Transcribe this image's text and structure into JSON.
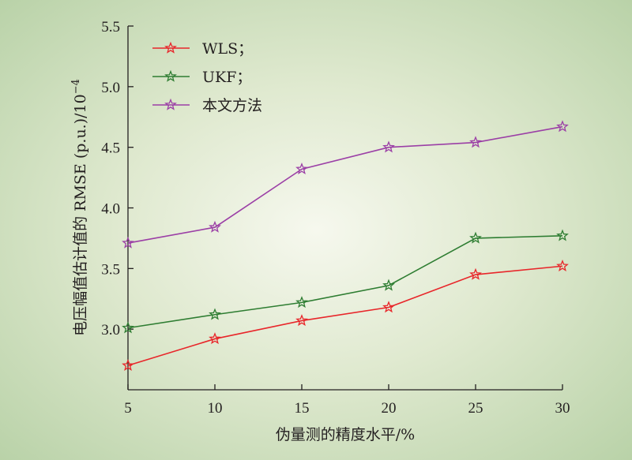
{
  "chart_data": {
    "type": "line",
    "title": "",
    "xlabel": "伪量测的精度水平/%",
    "ylabel": "电压幅值估计值的 RMSE (p.u.)/10",
    "ylabel_exponent": "−4",
    "x": [
      5,
      10,
      15,
      20,
      25,
      30
    ],
    "xlim": [
      5,
      30
    ],
    "ylim": [
      2.5,
      5.5
    ],
    "x_ticks": [
      "5",
      "10",
      "15",
      "20",
      "25",
      "30"
    ],
    "y_ticks": [
      "3.0",
      "3.5",
      "4.0",
      "4.5",
      "5.0",
      "5.5"
    ],
    "grid": false,
    "legend_position": "top-left",
    "series": [
      {
        "name": "WLS；",
        "color": "#e8262a",
        "values": [
          2.7,
          2.92,
          3.07,
          3.18,
          3.45,
          3.52
        ]
      },
      {
        "name": "UKF；",
        "color": "#2e7d32",
        "values": [
          3.01,
          3.12,
          3.22,
          3.36,
          3.75,
          3.77
        ]
      },
      {
        "name": "本文方法",
        "color": "#9b3fa6",
        "values": [
          3.71,
          3.84,
          4.32,
          4.5,
          4.54,
          4.67
        ]
      }
    ]
  }
}
